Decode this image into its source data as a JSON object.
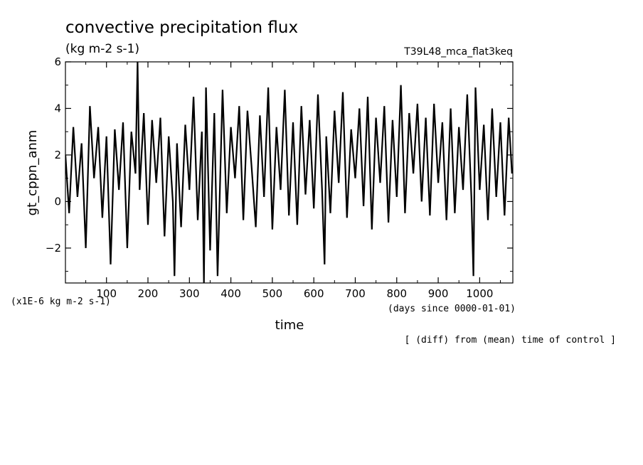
{
  "header": {
    "title": "convective precipitation flux",
    "units": "(kg m-2 s-1)",
    "run_name": "T39L48_mca_flat3keq"
  },
  "footer": {
    "scale_note": "(x1E-6 kg m-2 s-1)",
    "time_units": "(days since 0000-01-01)",
    "diff_note": "[ (diff) from (mean) time of control ]"
  },
  "chart_data": {
    "type": "line",
    "title": "convective precipitation flux",
    "ylabel": "gt_cppn_anm",
    "xlabel": "time",
    "xlim": [
      1,
      1080
    ],
    "ylim": [
      -3.5,
      6
    ],
    "xticks": [
      100,
      200,
      300,
      400,
      500,
      600,
      700,
      800,
      900,
      1000
    ],
    "yticks": [
      -2,
      0,
      2,
      4,
      6
    ],
    "xtick_labels": [
      "100",
      "200",
      "300",
      "400",
      "500",
      "600",
      "700",
      "800",
      "900",
      "1000"
    ],
    "ytick_labels": [
      "−2",
      "0",
      "2",
      "4",
      "6"
    ],
    "grid": false,
    "line_color": "#000000",
    "series": [
      {
        "x": [
          1,
          10,
          20,
          30,
          40,
          50,
          60,
          70,
          80,
          90,
          100,
          110,
          120,
          130,
          140,
          150,
          160,
          170,
          175,
          180,
          190,
          200,
          210,
          220,
          230,
          240,
          250,
          260,
          264,
          270,
          280,
          290,
          300,
          310,
          320,
          330,
          335,
          340,
          350,
          360,
          368,
          380,
          390,
          400,
          410,
          420,
          430,
          440,
          450,
          460,
          470,
          480,
          490,
          500,
          510,
          520,
          530,
          540,
          550,
          560,
          570,
          580,
          590,
          600,
          610,
          620,
          626,
          630,
          640,
          650,
          660,
          670,
          680,
          690,
          700,
          710,
          720,
          730,
          740,
          750,
          760,
          770,
          780,
          790,
          800,
          810,
          820,
          830,
          840,
          850,
          860,
          870,
          880,
          890,
          900,
          910,
          920,
          930,
          940,
          950,
          960,
          970,
          980,
          985,
          990,
          1000,
          1010,
          1020,
          1030,
          1040,
          1050,
          1060,
          1070,
          1078
        ],
        "y": [
          2.0,
          -0.5,
          3.2,
          0.2,
          2.5,
          -2.0,
          4.1,
          1.0,
          3.2,
          -0.7,
          2.8,
          -2.7,
          3.1,
          0.5,
          3.4,
          -2.0,
          3.0,
          1.2,
          6.0,
          0.5,
          3.8,
          -1.0,
          3.5,
          0.8,
          3.6,
          -1.5,
          2.8,
          0.0,
          -3.2,
          2.5,
          -1.1,
          3.3,
          0.5,
          4.5,
          -0.8,
          3.0,
          -3.5,
          4.9,
          -2.1,
          3.8,
          -3.2,
          4.8,
          -0.5,
          3.2,
          1.0,
          4.1,
          -0.8,
          3.9,
          1.5,
          -1.1,
          3.7,
          0.2,
          4.9,
          -1.2,
          3.2,
          0.5,
          4.8,
          -0.6,
          3.4,
          -1.0,
          4.1,
          0.3,
          3.5,
          -0.3,
          4.6,
          0.5,
          -2.7,
          2.8,
          -0.5,
          3.9,
          0.8,
          4.7,
          -0.7,
          3.1,
          1.0,
          4.0,
          -0.2,
          4.5,
          -1.2,
          3.6,
          0.8,
          4.1,
          -0.9,
          3.5,
          0.2,
          5.0,
          -0.5,
          3.8,
          1.2,
          4.2,
          0.0,
          3.6,
          -0.6,
          4.2,
          0.8,
          3.4,
          -0.8,
          4.0,
          -0.5,
          3.2,
          0.5,
          4.6,
          0.2,
          -3.2,
          4.9,
          0.5,
          3.3,
          -0.8,
          4.0,
          0.2,
          3.4,
          -0.6,
          3.6,
          1.2
        ]
      }
    ]
  }
}
